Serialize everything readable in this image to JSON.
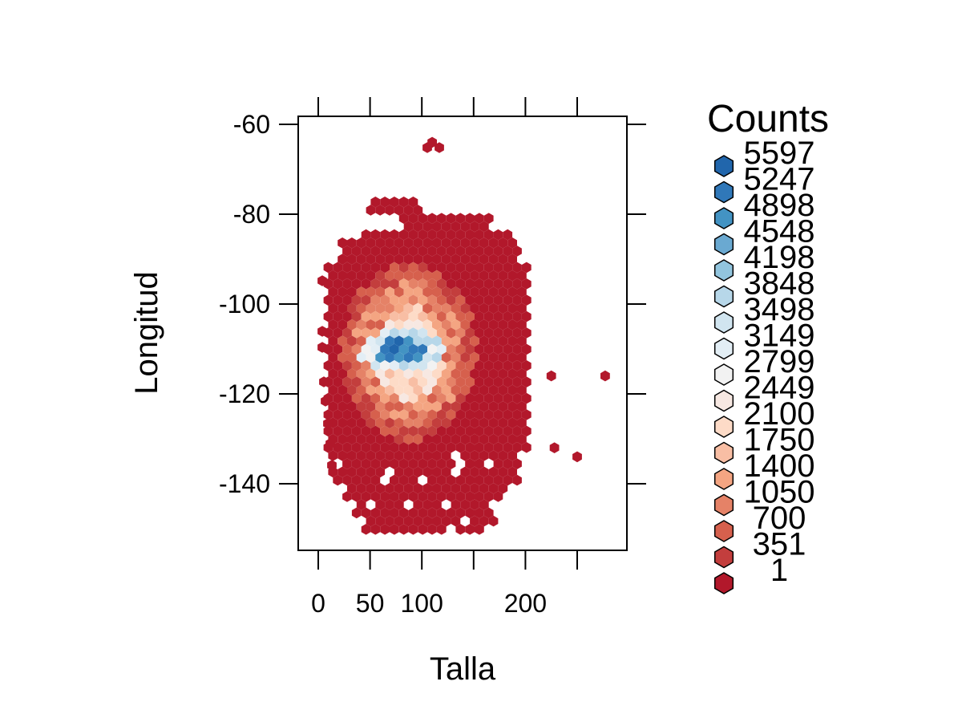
{
  "chart_data": {
    "type": "hexbin",
    "xlabel": "Talla",
    "ylabel": "Longitud",
    "x_ticks": [
      0,
      50,
      100,
      200
    ],
    "y_ticks": [
      -60,
      -80,
      -100,
      -120,
      -140
    ],
    "xlim": [
      -20,
      295
    ],
    "ylim": [
      -155,
      -57
    ],
    "legend": {
      "title": "Counts",
      "position": "right",
      "labels": [
        "5597",
        "5247",
        "4898",
        "4548",
        "4198",
        "3848",
        "3498",
        "3149",
        "2799",
        "2449",
        "2100",
        "1750",
        "1400",
        "1050",
        "700",
        "351",
        "1"
      ],
      "colors": [
        "#2166ac",
        "#3078b9",
        "#4393c3",
        "#6aa9d1",
        "#92c5de",
        "#b7d7e9",
        "#d1e5f0",
        "#e3eef5",
        "#f2f2f2",
        "#f7e8e2",
        "#fddbc7",
        "#f8bea4",
        "#f4a582",
        "#e58267",
        "#d6604d",
        "#c33e3d",
        "#b2182b"
      ]
    },
    "regions": [
      {
        "x_range": [
          0,
          200
        ],
        "y_range": [
          -148,
          -88
        ],
        "count_approx": 1,
        "note": "outer body of low counts"
      },
      {
        "x_range": [
          45,
          135
        ],
        "y_range": [
          -130,
          -95
        ],
        "count_approx": 1400
      },
      {
        "x_range": [
          55,
          115
        ],
        "y_range": [
          -118,
          -104
        ],
        "count_approx": 2800
      },
      {
        "x_range": [
          60,
          95
        ],
        "y_range": [
          -114,
          -107
        ],
        "count_approx": 5200
      }
    ],
    "outliers": [
      {
        "x": 110,
        "y": -64
      },
      {
        "x": 225,
        "y": -116
      },
      {
        "x": 277,
        "y": -116
      },
      {
        "x": 228,
        "y": -132
      },
      {
        "x": 250,
        "y": -134
      }
    ]
  }
}
